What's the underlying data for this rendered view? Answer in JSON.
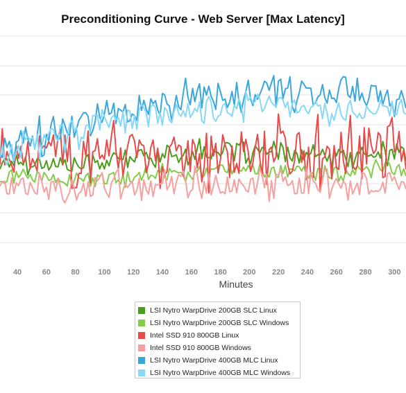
{
  "chart_data": {
    "type": "line",
    "title": "Preconditioning Curve - Web Server [Max Latency]",
    "xlabel": "Minutes",
    "ylabel": "",
    "x_ticks": [
      40,
      60,
      80,
      100,
      120,
      140,
      160,
      180,
      200,
      220,
      240,
      260,
      280,
      300
    ],
    "xlim": [
      28,
      308
    ],
    "ylim": [
      0,
      340
    ],
    "grid": true,
    "legend_position": "bottom",
    "series": [
      {
        "name": "LSI Nytro WarpDrive 200GB SLC Linux",
        "color": "#4a9c1b",
        "x": [
          28,
          40,
          60,
          80,
          100,
          120,
          140,
          160,
          180,
          200,
          220,
          240,
          260,
          280,
          300,
          308
        ],
        "values": [
          150,
          152,
          148,
          145,
          150,
          158,
          160,
          165,
          168,
          166,
          162,
          160,
          158,
          162,
          165,
          160
        ]
      },
      {
        "name": "LSI Nytro WarpDrive 200GB SLC Windows",
        "color": "#84cc4a",
        "x": [
          28,
          40,
          60,
          80,
          100,
          120,
          140,
          160,
          180,
          200,
          220,
          240,
          260,
          280,
          300,
          308
        ],
        "values": [
          128,
          130,
          125,
          122,
          124,
          128,
          133,
          138,
          140,
          138,
          136,
          135,
          134,
          136,
          138,
          136
        ]
      },
      {
        "name": "Intel SSD 910 800GB Linux",
        "color": "#e84a4a",
        "x": [
          28,
          40,
          60,
          80,
          100,
          120,
          140,
          160,
          180,
          200,
          220,
          240,
          260,
          280,
          300,
          308
        ],
        "values": [
          158,
          160,
          165,
          168,
          165,
          162,
          162,
          164,
          163,
          162,
          163,
          162,
          162,
          163,
          162,
          160
        ]
      },
      {
        "name": "Intel SSD 910 800GB Windows",
        "color": "#f7a0a0",
        "x": [
          28,
          40,
          60,
          80,
          100,
          120,
          140,
          160,
          180,
          200,
          220,
          240,
          260,
          280,
          300,
          308
        ],
        "values": [
          118,
          115,
          110,
          108,
          112,
          115,
          116,
          118,
          118,
          118,
          117,
          118,
          118,
          118,
          119,
          118
        ]
      },
      {
        "name": "LSI Nytro WarpDrive 400GB MLC Linux",
        "color": "#3aa7dc",
        "x": [
          28,
          40,
          60,
          80,
          100,
          120,
          140,
          160,
          180,
          200,
          220,
          240,
          260,
          280,
          300,
          308
        ],
        "values": [
          165,
          180,
          192,
          205,
          215,
          225,
          240,
          250,
          248,
          255,
          260,
          250,
          255,
          258,
          250,
          245
        ]
      },
      {
        "name": "LSI Nytro WarpDrive 400GB MLC Windows",
        "color": "#86d8f7",
        "x": [
          28,
          40,
          60,
          80,
          100,
          120,
          140,
          160,
          180,
          200,
          220,
          240,
          260,
          280,
          300,
          308
        ],
        "values": [
          158,
          170,
          185,
          195,
          210,
          215,
          225,
          228,
          230,
          232,
          235,
          230,
          228,
          232,
          230,
          228
        ]
      }
    ]
  }
}
